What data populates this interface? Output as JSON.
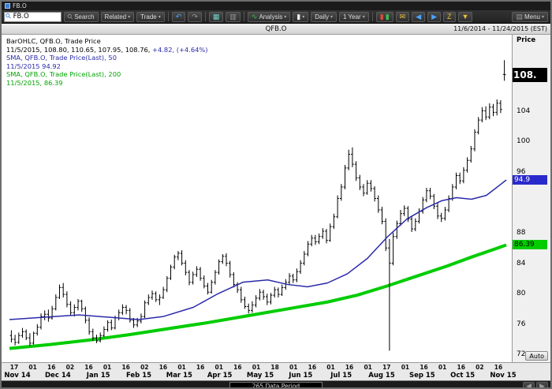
{
  "window": {
    "title": "FB.O"
  },
  "icons": {
    "magnifier": "⚲",
    "caret": "▾",
    "undo": "↶",
    "redo": "↷",
    "tile": "▦",
    "grid": "▥",
    "analysis": "∿",
    "candle": "▮",
    "candle_red": "▮",
    "candle_green": "▮",
    "envelope": "✉",
    "left_arrow": "◀",
    "right_arrow": "▶",
    "sleep": "Z",
    "funnel": "▼",
    "menu": "▤",
    "scroll_left": "◀",
    "scroll_right": "▶"
  },
  "toolbar": {
    "search_value": "FB.O",
    "search_label": "Search",
    "related_label": "Related",
    "trade_label": "Trade",
    "analysis_label": "Analysis",
    "daily_label": "Daily",
    "range_label": "1 Year",
    "menu_label": "Menu"
  },
  "header": {
    "title": "QFB.O",
    "date_range": "11/6/2014 - 11/24/2015 (EST)"
  },
  "legend": {
    "line1": "BarOHLC, QFB.O, Trade Price",
    "line2_black": "11/5/2015, 108.80, 110.65, 107.95, 108.76,",
    "line2_blue": " +4.82, (+4.64%)",
    "line3": "SMA, QFB.O, Trade Price(Last),  50",
    "line4": "11/5/2015 94.92",
    "line5": "SMA, QFB.O, Trade Price(Last),  200",
    "line6": "11/5/2015, 86.39"
  },
  "axis": {
    "price_label": "Price",
    "auto_label": "Auto",
    "badges": [
      {
        "text": "108.",
        "value": 108.76,
        "bg": "#000000",
        "fg": "#ffffff",
        "big": true
      },
      {
        "text": "94.9",
        "value": 94.92,
        "bg": "#2a2acc",
        "fg": "#ffffff",
        "big": false
      },
      {
        "text": "86.39",
        "value": 86.39,
        "bg": "#00cc00",
        "fg": "#000000",
        "big": false
      }
    ]
  },
  "footer": {
    "data_period": "265 Data Period"
  },
  "chart_data": {
    "type": "ohlc-bar",
    "title": "QFB.O Trade Price with 50 and 200 day SMA",
    "symbol": "QFB.O",
    "ylim": [
      71,
      114
    ],
    "yticks": [
      104,
      100,
      96,
      88,
      84,
      80,
      76,
      72
    ],
    "colors": {
      "bar": "#000000",
      "sma50": "#2a2aaa",
      "sma200": "#00cc00"
    },
    "last_bar": {
      "date": "11/5/2015",
      "open": 108.8,
      "high": 110.65,
      "low": 107.95,
      "close": 108.76,
      "change": "+4.82",
      "change_pct": "+4.64%"
    },
    "sma50": {
      "period": 50,
      "date": "11/5/2015",
      "value": 94.92,
      "points": [
        [
          0,
          76.6
        ],
        [
          0.07,
          76.9
        ],
        [
          0.14,
          77.2
        ],
        [
          0.2,
          76.9
        ],
        [
          0.26,
          76.6
        ],
        [
          0.31,
          77.0
        ],
        [
          0.37,
          78.2
        ],
        [
          0.42,
          80.0
        ],
        [
          0.47,
          81.5
        ],
        [
          0.52,
          81.8
        ],
        [
          0.56,
          81.2
        ],
        [
          0.6,
          80.9
        ],
        [
          0.64,
          81.4
        ],
        [
          0.68,
          82.6
        ],
        [
          0.72,
          84.6
        ],
        [
          0.76,
          87.4
        ],
        [
          0.8,
          89.8
        ],
        [
          0.84,
          91.3
        ],
        [
          0.87,
          92.2
        ],
        [
          0.9,
          92.6
        ],
        [
          0.93,
          92.4
        ],
        [
          0.96,
          92.9
        ],
        [
          1.0,
          94.92
        ]
      ]
    },
    "sma200": {
      "period": 200,
      "date": "11/5/2015",
      "value": 86.39,
      "points": [
        [
          0,
          72.8
        ],
        [
          0.08,
          73.3
        ],
        [
          0.16,
          73.9
        ],
        [
          0.24,
          74.6
        ],
        [
          0.32,
          75.4
        ],
        [
          0.4,
          76.2
        ],
        [
          0.48,
          77.1
        ],
        [
          0.56,
          78.0
        ],
        [
          0.64,
          78.9
        ],
        [
          0.7,
          79.8
        ],
        [
          0.76,
          81.0
        ],
        [
          0.82,
          82.3
        ],
        [
          0.88,
          83.6
        ],
        [
          0.93,
          84.8
        ],
        [
          0.97,
          85.7
        ],
        [
          1.0,
          86.39
        ]
      ]
    },
    "bars": [
      [
        74.5,
        75.2,
        73.6,
        74.0
      ],
      [
        74.0,
        74.6,
        73.2,
        73.6
      ],
      [
        73.6,
        74.9,
        73.4,
        74.5
      ],
      [
        74.5,
        75.5,
        74.2,
        75.0
      ],
      [
        75.0,
        75.3,
        73.9,
        74.2
      ],
      [
        74.2,
        74.8,
        73.1,
        73.5
      ],
      [
        73.5,
        75.0,
        73.3,
        74.8
      ],
      [
        74.8,
        76.0,
        74.5,
        75.6
      ],
      [
        75.6,
        77.4,
        75.3,
        77.0
      ],
      [
        77.0,
        77.8,
        76.5,
        77.3
      ],
      [
        77.3,
        77.9,
        76.3,
        76.8
      ],
      [
        76.8,
        78.4,
        76.6,
        78.0
      ],
      [
        78.0,
        79.9,
        77.8,
        79.5
      ],
      [
        79.5,
        81.2,
        79.3,
        80.8
      ],
      [
        80.8,
        81.4,
        79.5,
        79.9
      ],
      [
        79.9,
        80.3,
        78.2,
        78.6
      ],
      [
        78.6,
        79.0,
        77.1,
        77.5
      ],
      [
        77.5,
        78.6,
        77.0,
        78.2
      ],
      [
        78.2,
        79.3,
        77.8,
        79.0
      ],
      [
        79.0,
        79.2,
        77.6,
        78.0
      ],
      [
        78.0,
        78.3,
        76.1,
        76.5
      ],
      [
        76.5,
        76.9,
        74.6,
        75.0
      ],
      [
        75.0,
        75.4,
        73.8,
        74.2
      ],
      [
        74.2,
        74.6,
        73.5,
        73.8
      ],
      [
        73.8,
        74.9,
        73.6,
        74.5
      ],
      [
        74.5,
        75.7,
        74.3,
        75.3
      ],
      [
        75.3,
        76.5,
        75.0,
        76.2
      ],
      [
        76.2,
        76.6,
        75.2,
        75.5
      ],
      [
        75.5,
        77.1,
        75.3,
        76.8
      ],
      [
        76.8,
        77.9,
        76.5,
        77.5
      ],
      [
        77.5,
        78.6,
        77.2,
        78.2
      ],
      [
        78.2,
        78.5,
        77.3,
        77.8
      ],
      [
        77.8,
        78.1,
        76.2,
        76.5
      ],
      [
        76.5,
        76.8,
        75.5,
        75.9
      ],
      [
        75.9,
        76.8,
        75.6,
        76.4
      ],
      [
        76.4,
        77.4,
        76.1,
        77.0
      ],
      [
        77.0,
        79.1,
        76.8,
        78.8
      ],
      [
        78.8,
        79.9,
        78.5,
        79.5
      ],
      [
        79.5,
        80.4,
        79.2,
        80.0
      ],
      [
        80.0,
        80.3,
        78.9,
        79.2
      ],
      [
        79.2,
        79.9,
        78.5,
        79.5
      ],
      [
        79.5,
        80.9,
        79.3,
        80.5
      ],
      [
        80.5,
        82.3,
        80.2,
        82.0
      ],
      [
        82.0,
        83.8,
        81.8,
        83.5
      ],
      [
        83.5,
        85.1,
        83.2,
        84.8
      ],
      [
        84.8,
        85.6,
        84.4,
        85.3
      ],
      [
        85.3,
        85.7,
        83.7,
        84.0
      ],
      [
        84.0,
        84.4,
        82.4,
        82.8
      ],
      [
        82.8,
        83.1,
        81.1,
        81.5
      ],
      [
        81.5,
        82.9,
        81.2,
        82.5
      ],
      [
        82.5,
        83.6,
        82.2,
        83.2
      ],
      [
        83.2,
        83.5,
        81.7,
        82.0
      ],
      [
        82.0,
        82.4,
        80.7,
        81.0
      ],
      [
        81.0,
        81.4,
        79.9,
        80.2
      ],
      [
        80.2,
        81.8,
        80.0,
        81.5
      ],
      [
        81.5,
        83.1,
        81.2,
        82.8
      ],
      [
        82.8,
        84.5,
        82.5,
        84.2
      ],
      [
        84.2,
        85.2,
        83.9,
        84.9
      ],
      [
        84.9,
        85.3,
        83.6,
        84.0
      ],
      [
        84.0,
        84.3,
        82.1,
        82.5
      ],
      [
        82.5,
        82.8,
        80.8,
        81.2
      ],
      [
        81.2,
        81.5,
        80.1,
        80.5
      ],
      [
        80.5,
        80.9,
        78.8,
        79.2
      ],
      [
        79.2,
        79.6,
        78.0,
        78.3
      ],
      [
        78.3,
        78.7,
        77.4,
        77.8
      ],
      [
        77.8,
        79.0,
        77.5,
        78.5
      ],
      [
        78.5,
        79.8,
        78.2,
        79.4
      ],
      [
        79.4,
        80.6,
        79.1,
        80.2
      ],
      [
        80.2,
        80.5,
        79.2,
        79.6
      ],
      [
        79.6,
        80.0,
        78.5,
        78.9
      ],
      [
        78.9,
        80.1,
        78.6,
        79.8
      ],
      [
        79.8,
        80.9,
        79.5,
        80.5
      ],
      [
        80.5,
        80.8,
        79.5,
        79.9
      ],
      [
        79.9,
        81.2,
        79.7,
        80.8
      ],
      [
        80.8,
        81.9,
        80.5,
        81.5
      ],
      [
        81.5,
        82.7,
        81.2,
        82.3
      ],
      [
        82.3,
        82.6,
        81.4,
        81.8
      ],
      [
        81.8,
        83.3,
        81.5,
        82.9
      ],
      [
        82.9,
        84.4,
        82.6,
        84.0
      ],
      [
        84.0,
        85.6,
        83.7,
        85.2
      ],
      [
        85.2,
        86.9,
        84.9,
        86.5
      ],
      [
        86.5,
        87.7,
        86.2,
        87.3
      ],
      [
        87.3,
        87.7,
        86.4,
        86.8
      ],
      [
        86.8,
        87.9,
        86.5,
        87.5
      ],
      [
        87.5,
        88.6,
        87.2,
        88.2
      ],
      [
        88.2,
        88.5,
        86.6,
        87.0
      ],
      [
        87.0,
        89.2,
        86.8,
        88.8
      ],
      [
        88.8,
        90.5,
        88.5,
        90.1
      ],
      [
        90.1,
        92.9,
        89.9,
        92.5
      ],
      [
        92.5,
        94.4,
        92.2,
        94.0
      ],
      [
        94.0,
        96.9,
        93.7,
        96.5
      ],
      [
        96.5,
        98.9,
        96.2,
        98.3
      ],
      [
        98.3,
        99.2,
        96.6,
        97.0
      ],
      [
        97.0,
        97.4,
        94.8,
        95.2
      ],
      [
        95.2,
        95.6,
        93.6,
        94.0
      ],
      [
        94.0,
        94.4,
        92.8,
        93.2
      ],
      [
        93.2,
        94.9,
        93.0,
        94.5
      ],
      [
        94.5,
        94.9,
        93.4,
        93.8
      ],
      [
        93.8,
        94.1,
        92.1,
        92.5
      ],
      [
        92.5,
        92.9,
        90.6,
        91.0
      ],
      [
        91.0,
        91.4,
        89.1,
        89.5
      ],
      [
        89.5,
        89.9,
        85.6,
        86.0
      ],
      [
        86.0,
        87.2,
        72.5,
        84.0
      ],
      [
        84.0,
        88.0,
        83.7,
        87.5
      ],
      [
        87.5,
        89.6,
        87.2,
        89.2
      ],
      [
        89.2,
        91.0,
        88.9,
        90.5
      ],
      [
        90.5,
        91.6,
        90.2,
        91.2
      ],
      [
        91.2,
        91.5,
        89.4,
        89.8
      ],
      [
        89.8,
        90.2,
        88.1,
        88.5
      ],
      [
        88.5,
        89.9,
        88.2,
        89.5
      ],
      [
        89.5,
        91.2,
        89.2,
        90.8
      ],
      [
        90.8,
        92.7,
        90.5,
        92.3
      ],
      [
        92.3,
        93.9,
        92.0,
        93.5
      ],
      [
        93.5,
        93.9,
        92.4,
        92.8
      ],
      [
        92.8,
        93.1,
        91.1,
        91.5
      ],
      [
        91.5,
        91.9,
        89.8,
        90.2
      ],
      [
        90.2,
        90.6,
        89.4,
        89.9
      ],
      [
        89.9,
        91.4,
        89.6,
        91.0
      ],
      [
        91.0,
        92.9,
        90.7,
        92.5
      ],
      [
        92.5,
        94.4,
        92.2,
        94.0
      ],
      [
        94.0,
        95.9,
        93.7,
        95.5
      ],
      [
        95.5,
        95.9,
        94.4,
        94.8
      ],
      [
        94.8,
        96.6,
        94.5,
        96.2
      ],
      [
        96.2,
        97.9,
        95.9,
        97.5
      ],
      [
        97.5,
        99.4,
        97.2,
        99.0
      ],
      [
        99.0,
        101.6,
        98.7,
        101.2
      ],
      [
        101.2,
        103.2,
        100.9,
        102.8
      ],
      [
        102.8,
        104.5,
        102.5,
        104.0
      ],
      [
        104.0,
        104.6,
        102.8,
        103.2
      ],
      [
        103.2,
        105.0,
        102.9,
        104.5
      ],
      [
        104.5,
        104.9,
        103.3,
        103.8
      ],
      [
        103.8,
        105.5,
        103.4,
        105.0
      ],
      [
        105.0,
        105.4,
        103.7,
        104.2
      ],
      [
        108.8,
        110.65,
        107.95,
        108.76
      ]
    ],
    "xaxis": {
      "day_ticks": [
        "17",
        "01",
        "16",
        "02",
        "16",
        "01",
        "16",
        "02",
        "16",
        "01",
        "16",
        "01",
        "16",
        "01",
        "18",
        "01",
        "16",
        "01",
        "16",
        "01",
        "17",
        "01",
        "16",
        "01",
        "16",
        "02",
        "16"
      ],
      "month_labels": [
        "Nov 14",
        "Dec 14",
        "Jan 15",
        "Feb 15",
        "Mar 15",
        "Apr 15",
        "May 15",
        "Jun 15",
        "Jul 15",
        "Aug 15",
        "Sep 15",
        "Oct 15",
        "Nov 15"
      ]
    },
    "data_period": "265 Data Period"
  }
}
